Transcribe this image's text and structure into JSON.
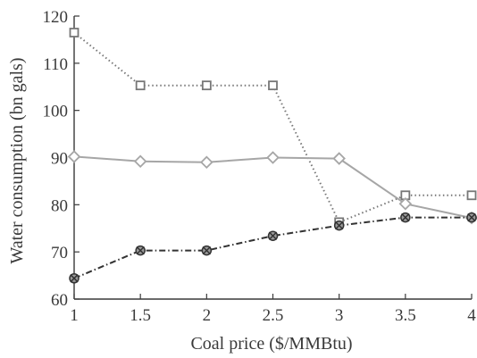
{
  "chart_data": {
    "type": "line",
    "title": "",
    "xlabel": "Coal price ($/MMBtu)",
    "ylabel": "Water consumption (bn gals)",
    "xlim": [
      1,
      4
    ],
    "ylim": [
      60,
      120
    ],
    "xticks": [
      1,
      1.5,
      2,
      2.5,
      3,
      3.5,
      4
    ],
    "xtick_labels": [
      "1",
      "1.5",
      "2",
      "2.5",
      "3",
      "3.5",
      "4"
    ],
    "yticks": [
      60,
      70,
      80,
      90,
      100,
      110,
      120
    ],
    "ytick_labels": [
      "60",
      "70",
      "80",
      "90",
      "100",
      "110",
      "120"
    ],
    "grid": false,
    "legend": "none",
    "x": [
      1,
      1.5,
      2,
      2.5,
      3,
      3.5,
      4
    ],
    "series": [
      {
        "values": [
          116.5,
          105.3,
          105.3,
          105.3,
          76.3,
          82.0,
          82.0
        ],
        "marker": "square",
        "line_style": "dotted",
        "color": "#777777"
      },
      {
        "values": [
          90.2,
          89.2,
          89.0,
          90.0,
          89.8,
          80.2,
          77.2
        ],
        "marker": "diamond",
        "line_style": "solid",
        "color": "#a6a6a6"
      },
      {
        "values": [
          64.4,
          70.3,
          70.3,
          73.4,
          75.6,
          77.3,
          77.3
        ],
        "marker": "circle-x",
        "line_style": "dashdot",
        "color": "#333333"
      }
    ]
  }
}
